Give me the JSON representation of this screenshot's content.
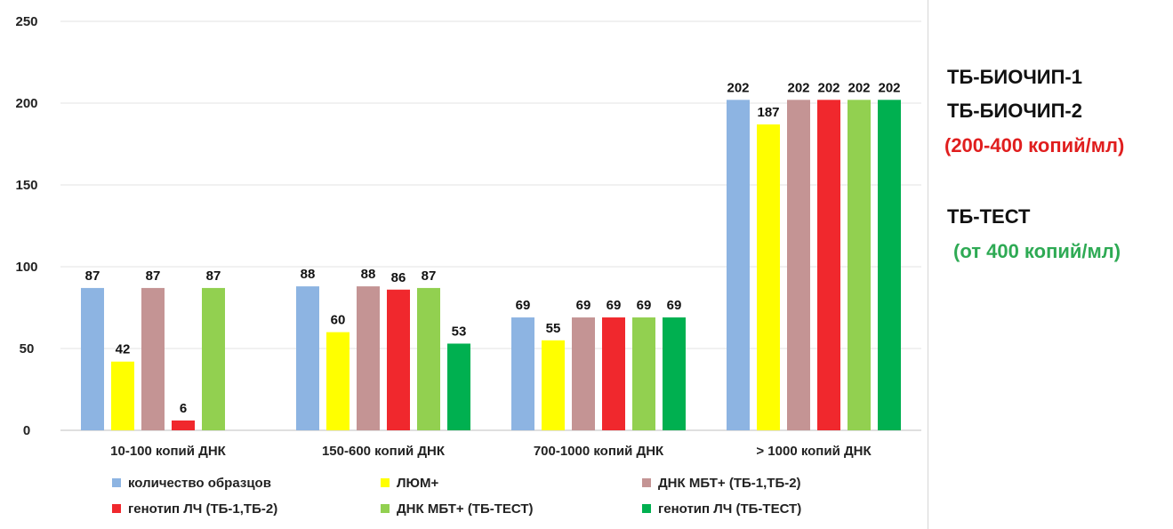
{
  "chart_data": {
    "type": "bar",
    "categories": [
      "10-100 копий ДНК",
      "150-600 копий ДНК",
      "700-1000 копий ДНК",
      "> 1000 копий ДНК"
    ],
    "series": [
      {
        "name": "количество образцов",
        "color": "#8db4e2",
        "values": [
          87,
          88,
          69,
          202
        ],
        "labels": [
          "87",
          "88",
          "69",
          "202"
        ]
      },
      {
        "name": "ЛЮМ+",
        "color": "#ffff00",
        "values": [
          42,
          60,
          55,
          187
        ],
        "labels": [
          "42",
          "60",
          "55",
          "187"
        ]
      },
      {
        "name": "ДНК МБТ+ (ТБ-1,ТБ-2)",
        "color": "#c49494",
        "values": [
          87,
          88,
          69,
          202
        ],
        "labels": [
          "87",
          "88",
          "69",
          "202"
        ]
      },
      {
        "name": "генотип ЛЧ (ТБ-1,ТБ-2)",
        "color": "#f0282d",
        "values": [
          6,
          86,
          69,
          202
        ],
        "labels": [
          "6",
          "86",
          "69",
          "202"
        ]
      },
      {
        "name": "ДНК МБТ+ (ТБ-ТЕСТ)",
        "color": "#92d050",
        "values": [
          87,
          87,
          69,
          202
        ],
        "labels": [
          "87",
          "87",
          "69",
          "202"
        ]
      },
      {
        "name": "генотип ЛЧ (ТБ-ТЕСТ)",
        "color": "#00b050",
        "values": [
          null,
          53,
          69,
          202
        ],
        "labels": [
          "",
          "53",
          "69",
          "202"
        ]
      }
    ],
    "y_ticks": [
      "0",
      "50",
      "100",
      "150",
      "200",
      "250"
    ],
    "ylim": [
      0,
      250
    ],
    "legend_position": "bottom"
  },
  "notes": {
    "line1": "ТБ-БИОЧИП-1",
    "line2": "ТБ-БИОЧИП-2",
    "line3": "(200-400 копий/мл)",
    "line4": "ТБ-ТЕСТ",
    "line5": "(от 400 копий/мл)"
  }
}
